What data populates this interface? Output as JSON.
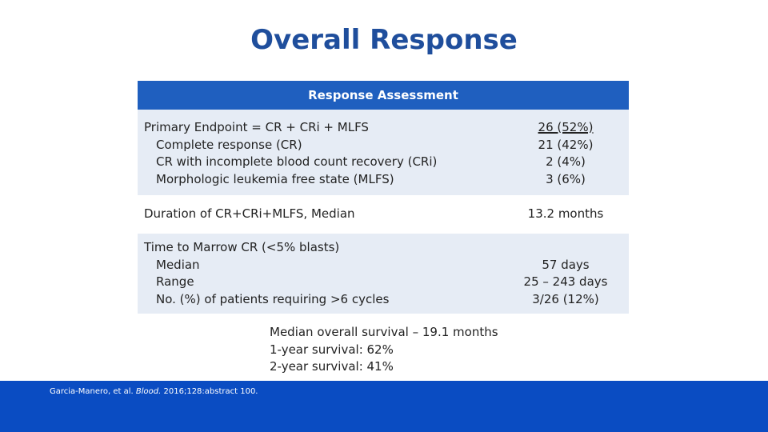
{
  "title": "Overall Response",
  "table": {
    "header": "Response Assessment",
    "primary": {
      "label": "Primary Endpoint = CR + CRi + MLFS",
      "value": "26 (52%)",
      "items": [
        {
          "label": "Complete response (CR)",
          "value": "21 (42%)"
        },
        {
          "label": "CR with incomplete blood count recovery (CRi)",
          "value": "2 (4%)"
        },
        {
          "label": "Morphologic leukemia free state (MLFS)",
          "value": "3 (6%)"
        }
      ]
    },
    "duration": {
      "label": "Duration of CR+CRi+MLFS, Median",
      "value": "13.2 months"
    },
    "marrow": {
      "label": "Time to Marrow CR (<5% blasts)",
      "items": [
        {
          "label": "Median",
          "value": "57 days"
        },
        {
          "label": "Range",
          "value": "25 – 243 days"
        },
        {
          "label": "No. (%) of patients requiring >6 cycles",
          "value": "3/26 (12%)"
        }
      ]
    }
  },
  "survival": [
    "Median overall survival – 19.1 months",
    "1-year survival: 62%",
    "2-year survival: 41%"
  ],
  "citation": {
    "prefix": "Garcia-Manero, et al. ",
    "journal": "Blood.",
    "suffix": " 2016;128:abstract 100."
  }
}
